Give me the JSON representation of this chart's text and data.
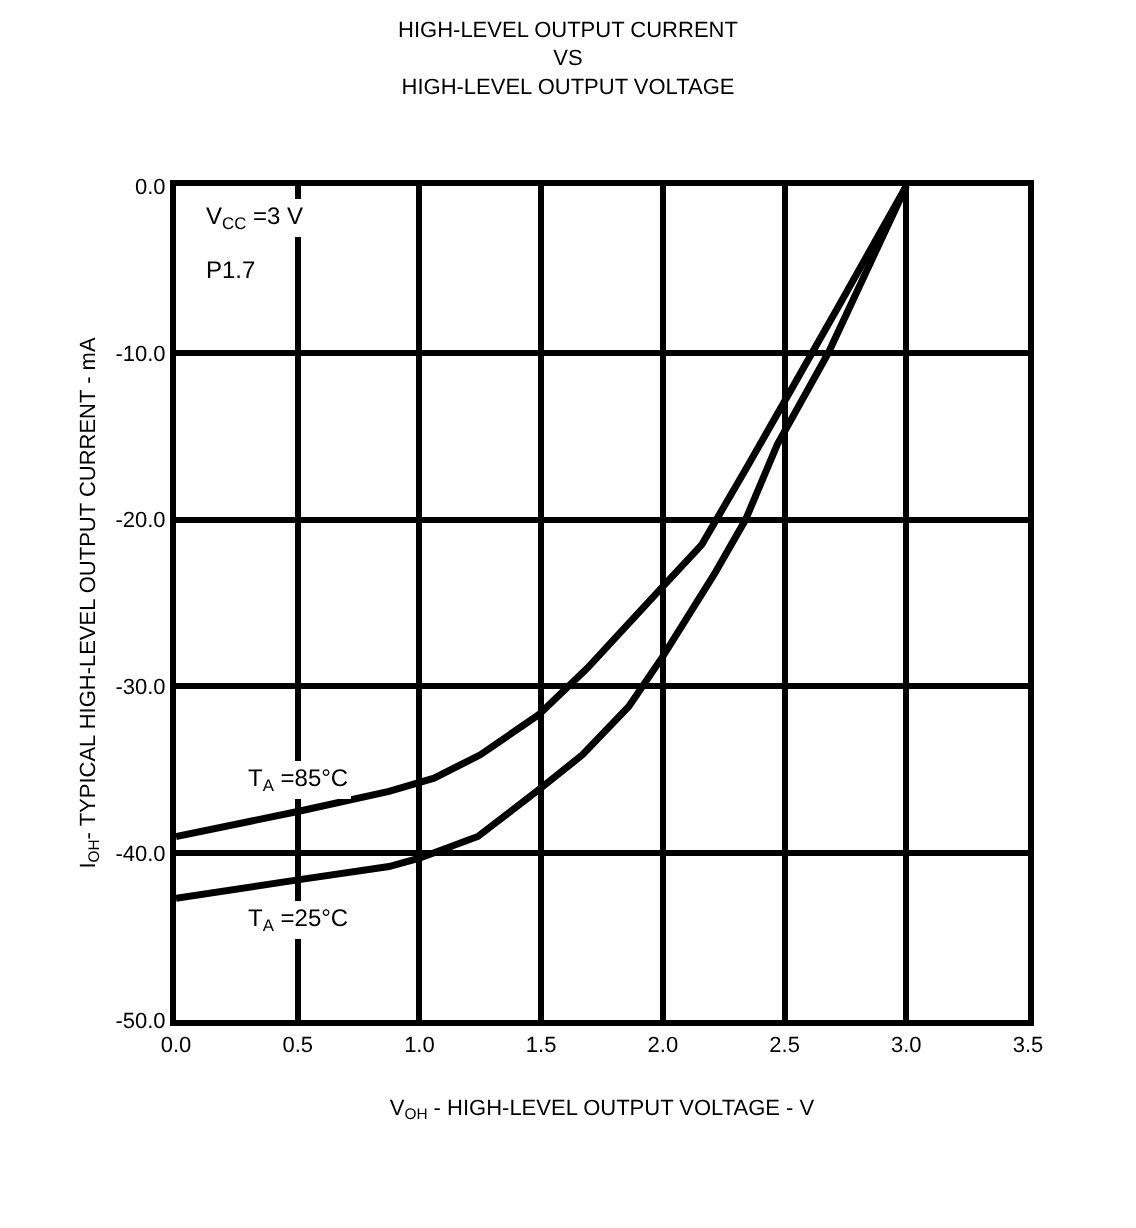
{
  "chart_data": {
    "type": "line",
    "title": "HIGH-LEVEL OUTPUT CURRENT\nVS\nHIGH-LEVEL OUTPUT VOLTAGE",
    "xlabel": "V$_{OH}$ - HIGH-LEVEL OUTPUT VOLTAGE - V",
    "ylabel": "I$_{OH}$- TYPICAL HIGH-LEVEL OUTPUT CURRENT - mA",
    "series": [
      {
        "color": "#000000",
        "x": [
          0,
          0.5,
          0.875,
          1.06,
          1.25,
          1.49,
          1.69,
          1.95,
          2.16,
          2.34,
          2.5,
          2.73,
          3.0
        ],
        "values": [
          -39.0,
          -37.5,
          -36.3,
          -35.5,
          -34.1,
          -31.7,
          -28.9,
          -24.8,
          -21.5,
          -17.0,
          -12.9,
          -7.0,
          0
        ]
      },
      {
        "color": "#000000",
        "x": [
          0,
          0.5,
          0.875,
          1.0,
          1.24,
          1.49,
          1.67,
          1.86,
          2.0,
          2.21,
          2.34,
          2.47,
          2.68,
          3.0
        ],
        "values": [
          -42.7,
          -41.6,
          -40.8,
          -40.3,
          -39.0,
          -36.2,
          -34.1,
          -31.2,
          -28.2,
          -23.3,
          -20.0,
          -15.5,
          -10.0,
          0
        ]
      }
    ],
    "annotations": [
      "V$_{CC}$ =3 V",
      "P1.7",
      {
        "text": "T$_{A}$ =85°C",
        "x": 0.5,
        "y": -37.5
      },
      {
        "text": "T$_{A}$ =25°C",
        "x": 0.5,
        "y": -41.6
      }
    ],
    "xlim": [
      0,
      3.5
    ],
    "xticks": [
      {
        "value": 0,
        "label": "0.0"
      },
      {
        "value": 0.5,
        "label": "0.5"
      },
      {
        "value": 1,
        "label": "1.0"
      },
      {
        "value": 1.5,
        "label": "1.5"
      },
      {
        "value": 2,
        "label": "2.0"
      },
      {
        "value": 2.5,
        "label": "2.5"
      },
      {
        "value": 3,
        "label": "3.0"
      },
      {
        "value": 3.5,
        "label": "3.5"
      }
    ],
    "ylim": [
      -50,
      0
    ],
    "yticks": [
      {
        "value": 0,
        "label": "0.0"
      },
      {
        "value": -10,
        "label": "-10.0"
      },
      {
        "value": -20,
        "label": "-20.0"
      },
      {
        "value": -30,
        "label": "-30.0"
      },
      {
        "value": -40,
        "label": "-40.0"
      },
      {
        "value": -50,
        "label": "-50.0"
      }
    ],
    "grid": true,
    "marker": "none",
    "line_style": "solid"
  }
}
